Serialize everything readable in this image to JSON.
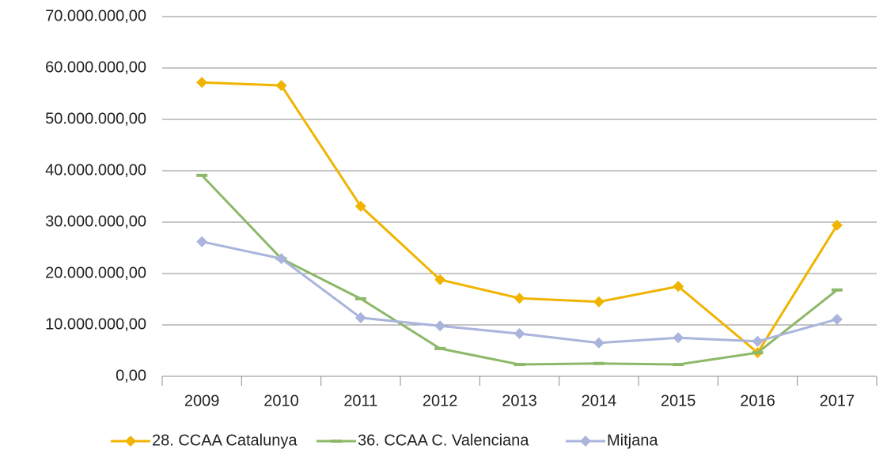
{
  "chart_data": {
    "type": "line",
    "categories": [
      "2009",
      "2010",
      "2011",
      "2012",
      "2013",
      "2014",
      "2015",
      "2016",
      "2017"
    ],
    "series": [
      {
        "name": "28. CCAA Catalunya",
        "color": "#f0b400",
        "marker": "diamond",
        "values": [
          57200000,
          56600000,
          33100000,
          18800000,
          15200000,
          14500000,
          17500000,
          4600000,
          29400000
        ]
      },
      {
        "name": "36. CCAA C. Valenciana",
        "color": "#8db86a",
        "marker": "dash",
        "values": [
          39100000,
          22900000,
          15100000,
          5400000,
          2300000,
          2500000,
          2300000,
          4600000,
          16800000
        ]
      },
      {
        "name": "Mitjana",
        "color": "#aab4dc",
        "marker": "diamond",
        "values": [
          26200000,
          22900000,
          11400000,
          9800000,
          8300000,
          6500000,
          7500000,
          6800000,
          11100000
        ]
      }
    ],
    "ylim": [
      0,
      70000000
    ],
    "yticks": [
      {
        "value": 0,
        "label": "0,00"
      },
      {
        "value": 10000000,
        "label": "10.000.000,00"
      },
      {
        "value": 20000000,
        "label": "20.000.000,00"
      },
      {
        "value": 30000000,
        "label": "30.000.000,00"
      },
      {
        "value": 40000000,
        "label": "40.000.000,00"
      },
      {
        "value": 50000000,
        "label": "50.000.000,00"
      },
      {
        "value": 60000000,
        "label": "60.000.000,00"
      },
      {
        "value": 70000000,
        "label": "70.000.000,00"
      }
    ],
    "grid": true,
    "legend": "bottom"
  }
}
